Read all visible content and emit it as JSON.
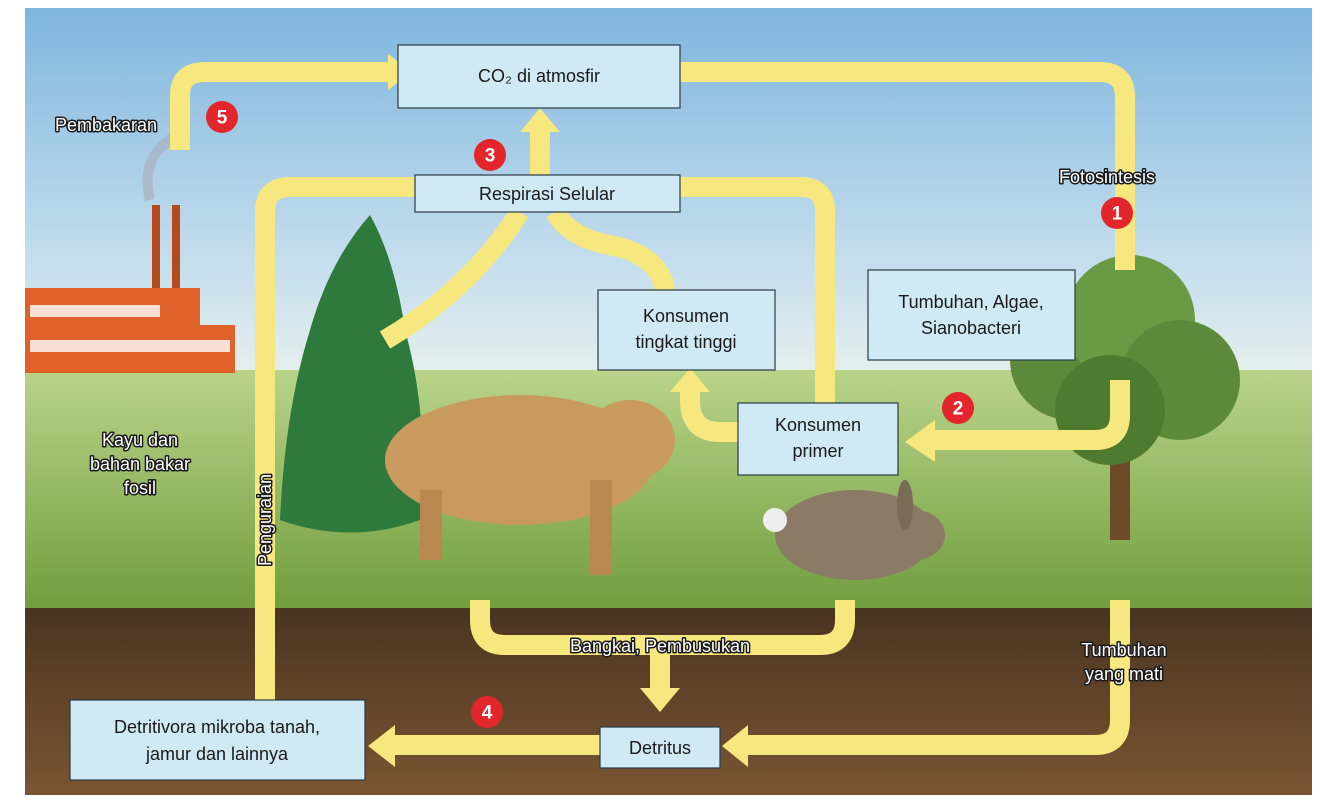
{
  "boxes": {
    "atmosphere": [
      "CO₂ di atmosfir"
    ],
    "respiration": [
      "Respirasi Selular"
    ],
    "top_consumers": [
      "Konsumen",
      "tingkat tinggi"
    ],
    "primary_consumers": [
      "Konsumen",
      "primer"
    ],
    "producers": [
      "Tumbuhan, Algae,",
      "Sianobacteri"
    ],
    "decomposers": [
      "Detritivora mikroba tanah,",
      "jamur dan lainnya"
    ],
    "detritus": [
      "Detritus"
    ]
  },
  "labels": {
    "combustion": [
      "Pembakaran"
    ],
    "photosynthesis": [
      "Fotosintesis"
    ],
    "fossil_fuels": [
      "Kayu dan",
      "bahan bakar",
      "fosil"
    ],
    "decomposition": [
      "Penguraian"
    ],
    "carcasses": [
      "Bangkai, Pembusukan"
    ],
    "dead_plants": [
      "Tumbuhan",
      "yang mati"
    ]
  },
  "steps": [
    1,
    2,
    3,
    4,
    5
  ]
}
